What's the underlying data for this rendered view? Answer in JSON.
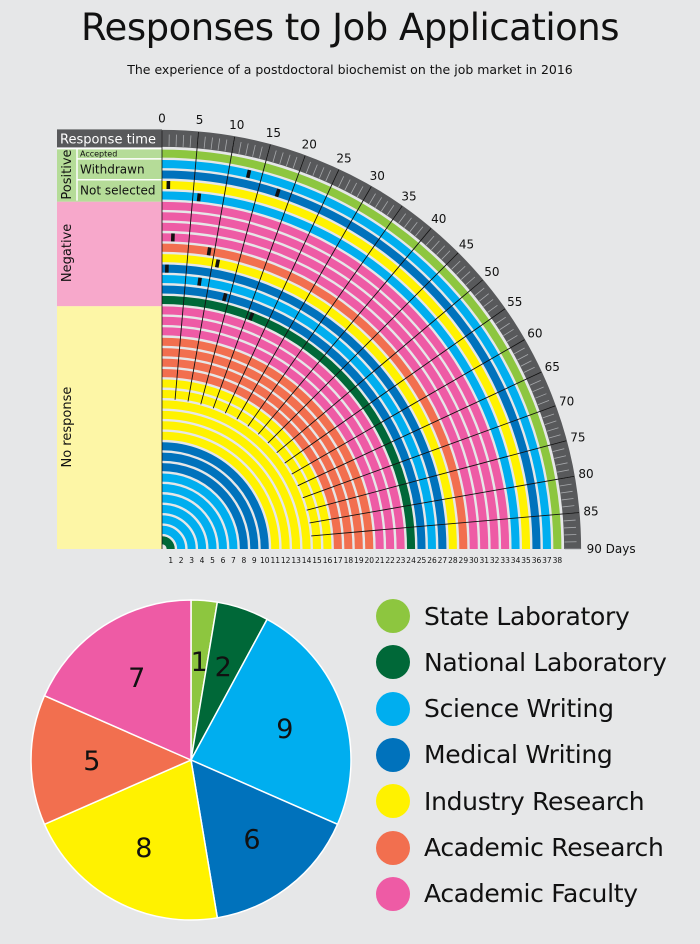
{
  "title": "Responses to Job Applications",
  "subtitle": "The experience of a postdoctoral biochemist on the job market in 2016",
  "colors": {
    "State Laboratory": "#8dc63f",
    "National Laboratory": "#006838",
    "Science Writing": "#00aeef",
    "Medical Writing": "#0072bc",
    "Industry Research": "#fff200",
    "Academic Research": "#f26f4f",
    "Academic Faculty": "#ee5ba5",
    "response_time": "#58595b",
    "positive_bg": "#b5dc98",
    "negative_bg": "#f7a8cb",
    "noresponse_bg": "#fdf6a6"
  },
  "chart_data": [
    {
      "type": "radial-bar",
      "title": "Responses to Job Applications",
      "subtitle": "The experience of a postdoctoral biochemist on the job market in 2016",
      "angular_axis": {
        "label": "Response time",
        "unit_label": "Days",
        "min": 0,
        "max": 90,
        "tick_labels": [
          "0",
          "5",
          "10",
          "15",
          "20",
          "25",
          "30",
          "35",
          "40",
          "45",
          "50",
          "55",
          "60",
          "65",
          "70",
          "75",
          "80",
          "85",
          "90 Days"
        ]
      },
      "radial_axis": {
        "tick_labels": [
          "1",
          "2",
          "3",
          "4",
          "5",
          "6",
          "7",
          "8",
          "9",
          "10",
          "11",
          "12",
          "13",
          "14",
          "15",
          "16",
          "17",
          "18",
          "19",
          "20",
          "21",
          "22",
          "23",
          "24",
          "25",
          "26",
          "27",
          "28",
          "29",
          "30",
          "31",
          "32",
          "33",
          "34",
          "35",
          "36",
          "37",
          "38"
        ]
      },
      "groups": [
        {
          "name": "Positive",
          "sublabels": [
            "Accepted",
            "Withdrawn",
            "Not selected"
          ]
        },
        {
          "name": "Negative"
        },
        {
          "name": "No response"
        }
      ],
      "applications": [
        {
          "n": 1,
          "category": "National Laboratory",
          "outcome": "No response",
          "response_day": null
        },
        {
          "n": 2,
          "category": "Science Writing",
          "outcome": "No response",
          "response_day": null
        },
        {
          "n": 3,
          "category": "Science Writing",
          "outcome": "No response",
          "response_day": null
        },
        {
          "n": 4,
          "category": "Science Writing",
          "outcome": "No response",
          "response_day": null
        },
        {
          "n": 5,
          "category": "Science Writing",
          "outcome": "No response",
          "response_day": null
        },
        {
          "n": 6,
          "category": "Science Writing",
          "outcome": "No response",
          "response_day": null
        },
        {
          "n": 7,
          "category": "Science Writing",
          "outcome": "No response",
          "response_day": null
        },
        {
          "n": 8,
          "category": "Medical Writing",
          "outcome": "No response",
          "response_day": null
        },
        {
          "n": 9,
          "category": "Medical Writing",
          "outcome": "No response",
          "response_day": null
        },
        {
          "n": 10,
          "category": "Medical Writing",
          "outcome": "No response",
          "response_day": null
        },
        {
          "n": 11,
          "category": "Industry Research",
          "outcome": "No response",
          "response_day": null
        },
        {
          "n": 12,
          "category": "Industry Research",
          "outcome": "No response",
          "response_day": null
        },
        {
          "n": 13,
          "category": "Industry Research",
          "outcome": "No response",
          "response_day": null
        },
        {
          "n": 14,
          "category": "Industry Research",
          "outcome": "No response",
          "response_day": null
        },
        {
          "n": 15,
          "category": "Industry Research",
          "outcome": "No response",
          "response_day": null
        },
        {
          "n": 16,
          "category": "Industry Research",
          "outcome": "No response",
          "response_day": null
        },
        {
          "n": 17,
          "category": "Academic Research",
          "outcome": "No response",
          "response_day": null
        },
        {
          "n": 18,
          "category": "Academic Research",
          "outcome": "No response",
          "response_day": null
        },
        {
          "n": 19,
          "category": "Academic Research",
          "outcome": "No response",
          "response_day": null
        },
        {
          "n": 20,
          "category": "Academic Research",
          "outcome": "No response",
          "response_day": null
        },
        {
          "n": 21,
          "category": "Academic Faculty",
          "outcome": "No response",
          "response_day": null
        },
        {
          "n": 22,
          "category": "Academic Faculty",
          "outcome": "No response",
          "response_day": null
        },
        {
          "n": 23,
          "category": "Academic Faculty",
          "outcome": "No response",
          "response_day": null
        },
        {
          "n": 24,
          "category": "National Laboratory",
          "outcome": "Negative",
          "response_day": 21
        },
        {
          "n": 25,
          "category": "Medical Writing",
          "outcome": "Negative",
          "response_day": 14
        },
        {
          "n": 26,
          "category": "Science Writing",
          "outcome": "Negative",
          "response_day": 8
        },
        {
          "n": 27,
          "category": "Medical Writing",
          "outcome": "Negative",
          "response_day": 1
        },
        {
          "n": 28,
          "category": "Industry Research",
          "outcome": "Negative",
          "response_day": 11
        },
        {
          "n": 29,
          "category": "Academic Research",
          "outcome": "Negative",
          "response_day": 9
        },
        {
          "n": 30,
          "category": "Academic Faculty",
          "outcome": "Negative",
          "response_day": 2
        },
        {
          "n": 31,
          "category": "Academic Faculty",
          "outcome": "Negative",
          "response_day": null
        },
        {
          "n": 32,
          "category": "Academic Faculty",
          "outcome": "Negative",
          "response_day": null
        },
        {
          "n": 33,
          "category": "Academic Faculty",
          "outcome": "Negative",
          "response_day": null
        },
        {
          "n": 34,
          "category": "Science Writing",
          "outcome": "Not selected",
          "response_day": 6
        },
        {
          "n": 35,
          "category": "Industry Research",
          "outcome": "Not selected",
          "response_day": 1
        },
        {
          "n": 36,
          "category": "Medical Writing",
          "outcome": "Withdrawn",
          "response_day": 18
        },
        {
          "n": 37,
          "category": "Science Writing",
          "outcome": "Withdrawn",
          "response_day": 13
        },
        {
          "n": 38,
          "category": "State Laboratory",
          "outcome": "Accepted",
          "response_day": null
        }
      ]
    },
    {
      "type": "pie",
      "categories": [
        "State Laboratory",
        "National Laboratory",
        "Science Writing",
        "Medical Writing",
        "Industry Research",
        "Academic Research",
        "Academic Faculty"
      ],
      "values": [
        1,
        2,
        9,
        6,
        8,
        5,
        7
      ],
      "legend_position": "right"
    }
  ]
}
